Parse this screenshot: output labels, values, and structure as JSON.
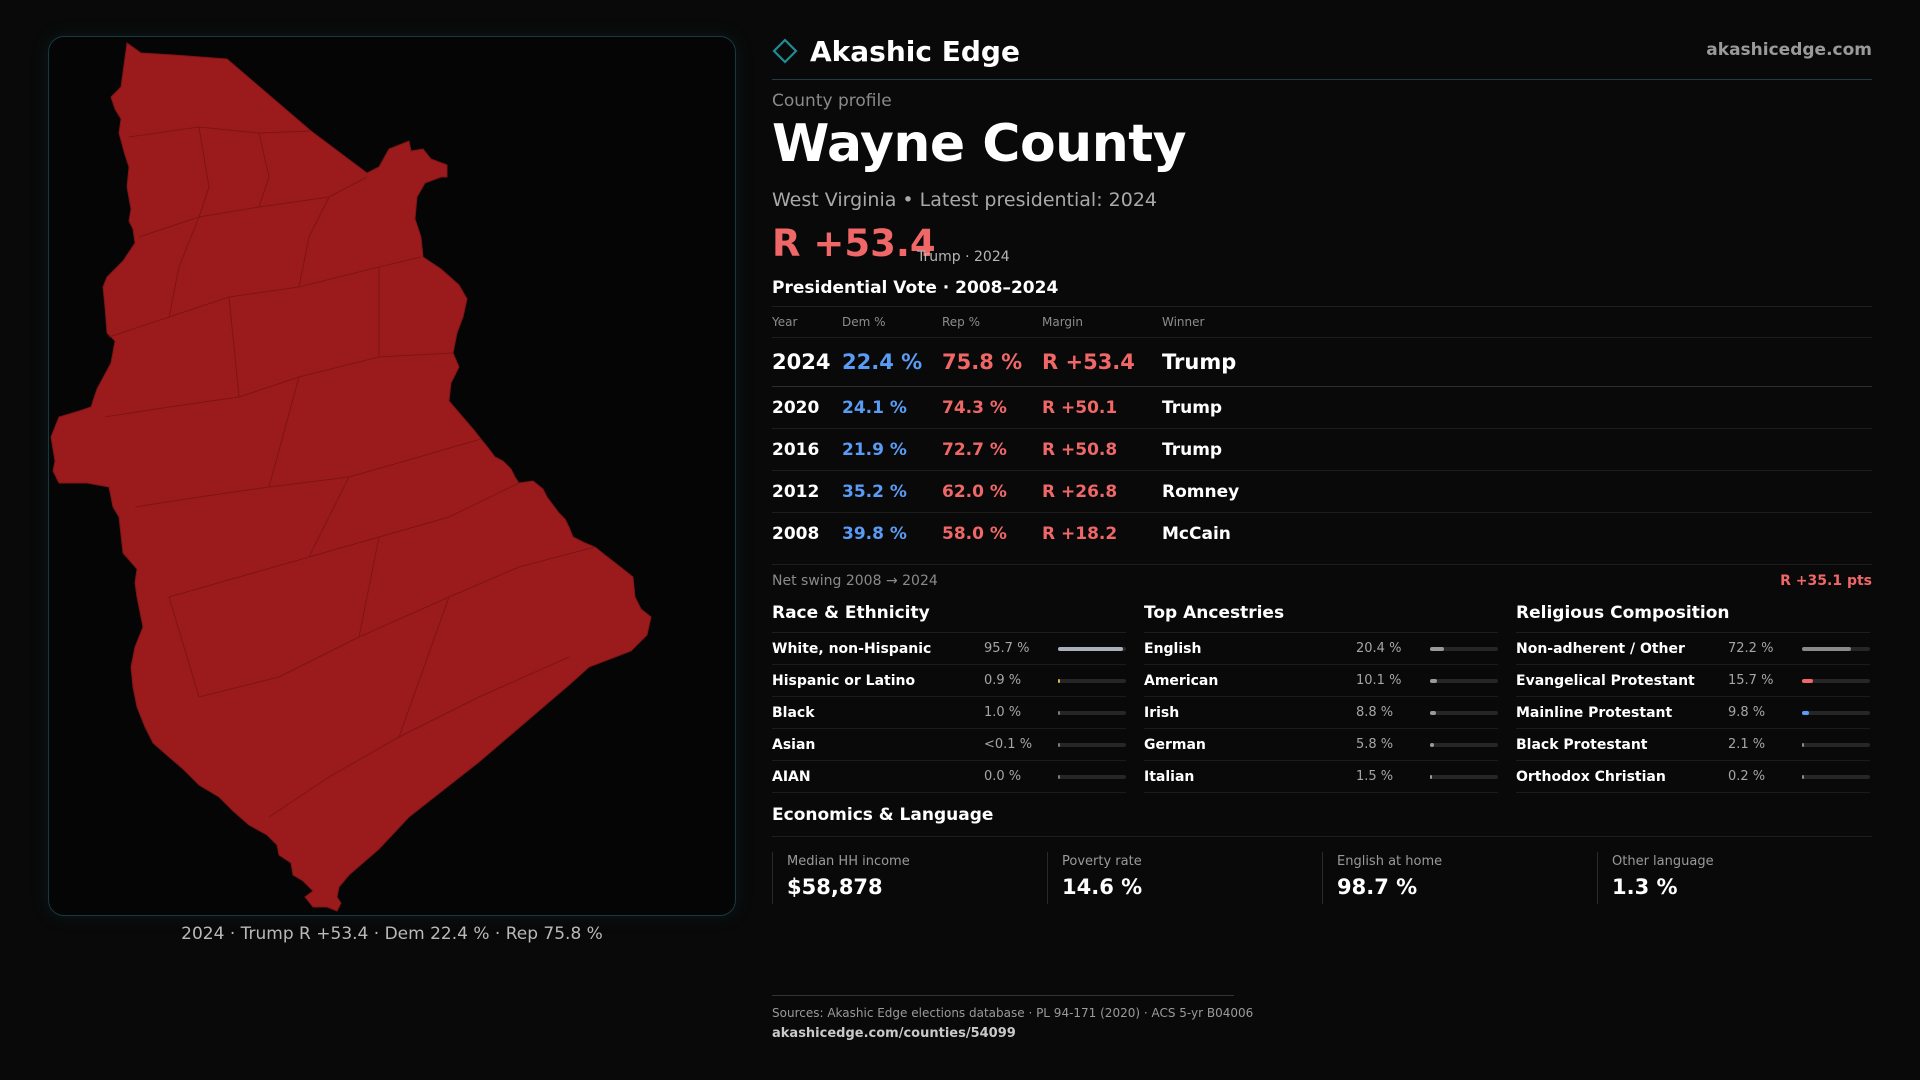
{
  "brand": {
    "name": "Akashic Edge",
    "site": "akashicedge.com"
  },
  "profile": {
    "eyebrow": "County profile",
    "county": "Wayne County",
    "subtitle": "West Virginia • Latest presidential: 2024",
    "margin": "R +53.4",
    "margin_note": "Trump · 2024"
  },
  "map": {
    "caption": "2024 · Trump R +53.4 · Dem 22.4 % · Rep 75.8 %",
    "fill_color": "#9b1b1c"
  },
  "vote": {
    "title": "Presidential Vote · 2008–2024",
    "headers": {
      "year": "Year",
      "dem": "Dem %",
      "rep": "Rep %",
      "margin": "Margin",
      "winner": "Winner"
    },
    "rows": [
      {
        "year": "2024",
        "dem": "22.4 %",
        "rep": "75.8 %",
        "margin": "R +53.4",
        "winner": "Trump"
      },
      {
        "year": "2020",
        "dem": "24.1 %",
        "rep": "74.3 %",
        "margin": "R +50.1",
        "winner": "Trump"
      },
      {
        "year": "2016",
        "dem": "21.9 %",
        "rep": "72.7 %",
        "margin": "R +50.8",
        "winner": "Trump"
      },
      {
        "year": "2012",
        "dem": "35.2 %",
        "rep": "62.0 %",
        "margin": "R +26.8",
        "winner": "Romney"
      },
      {
        "year": "2008",
        "dem": "39.8 %",
        "rep": "58.0 %",
        "margin": "R +18.2",
        "winner": "McCain"
      }
    ],
    "swing_label": "Net swing 2008 → 2024",
    "swing_value": "R +35.1 pts"
  },
  "race": {
    "title": "Race & Ethnicity",
    "rows": [
      {
        "label": "White, non-Hispanic",
        "value": "95.7 %",
        "share": 0.957,
        "color": "#a8b0bc"
      },
      {
        "label": "Hispanic or Latino",
        "value": "0.9 %",
        "share": 0.009,
        "color": "#d9b54a"
      },
      {
        "label": "Black",
        "value": "1.0 %",
        "share": 0.01,
        "color": "#7a7a7a"
      },
      {
        "label": "Asian",
        "value": "<0.1 %",
        "share": 0.0,
        "color": "#7a7a7a"
      },
      {
        "label": "AIAN",
        "value": "0.0 %",
        "share": 0.0,
        "color": "#7a7a7a"
      }
    ]
  },
  "ancestry": {
    "title": "Top Ancestries",
    "rows": [
      {
        "label": "English",
        "value": "20.4 %",
        "share": 0.204,
        "color": "#9a9a9a"
      },
      {
        "label": "American",
        "value": "10.1 %",
        "share": 0.101,
        "color": "#9a9a9a"
      },
      {
        "label": "Irish",
        "value": "8.8 %",
        "share": 0.088,
        "color": "#9a9a9a"
      },
      {
        "label": "German",
        "value": "5.8 %",
        "share": 0.058,
        "color": "#9a9a9a"
      },
      {
        "label": "Italian",
        "value": "1.5 %",
        "share": 0.015,
        "color": "#9a9a9a"
      }
    ]
  },
  "religion": {
    "title": "Religious Composition",
    "rows": [
      {
        "label": "Non-adherent / Other",
        "value": "72.2 %",
        "share": 0.722,
        "color": "#8a8a8a"
      },
      {
        "label": "Evangelical Protestant",
        "value": "15.7 %",
        "share": 0.157,
        "color": "#f06767"
      },
      {
        "label": "Mainline Protestant",
        "value": "9.8 %",
        "share": 0.098,
        "color": "#5a9cf5"
      },
      {
        "label": "Black Protestant",
        "value": "2.1 %",
        "share": 0.021,
        "color": "#8a8a8a"
      },
      {
        "label": "Orthodox Christian",
        "value": "0.2 %",
        "share": 0.002,
        "color": "#8a8a8a"
      }
    ]
  },
  "economics": {
    "title": "Economics & Language",
    "cards": [
      {
        "label": "Median HH income",
        "value": "$58,878"
      },
      {
        "label": "Poverty rate",
        "value": "14.6 %"
      },
      {
        "label": "English at home",
        "value": "98.7 %"
      },
      {
        "label": "Other language",
        "value": "1.3 %"
      }
    ]
  },
  "footer": {
    "sources": "Sources: Akashic Edge elections database · PL 94-171 (2020) · ACS 5-yr B04006",
    "url": "akashicedge.com/counties/54099"
  }
}
